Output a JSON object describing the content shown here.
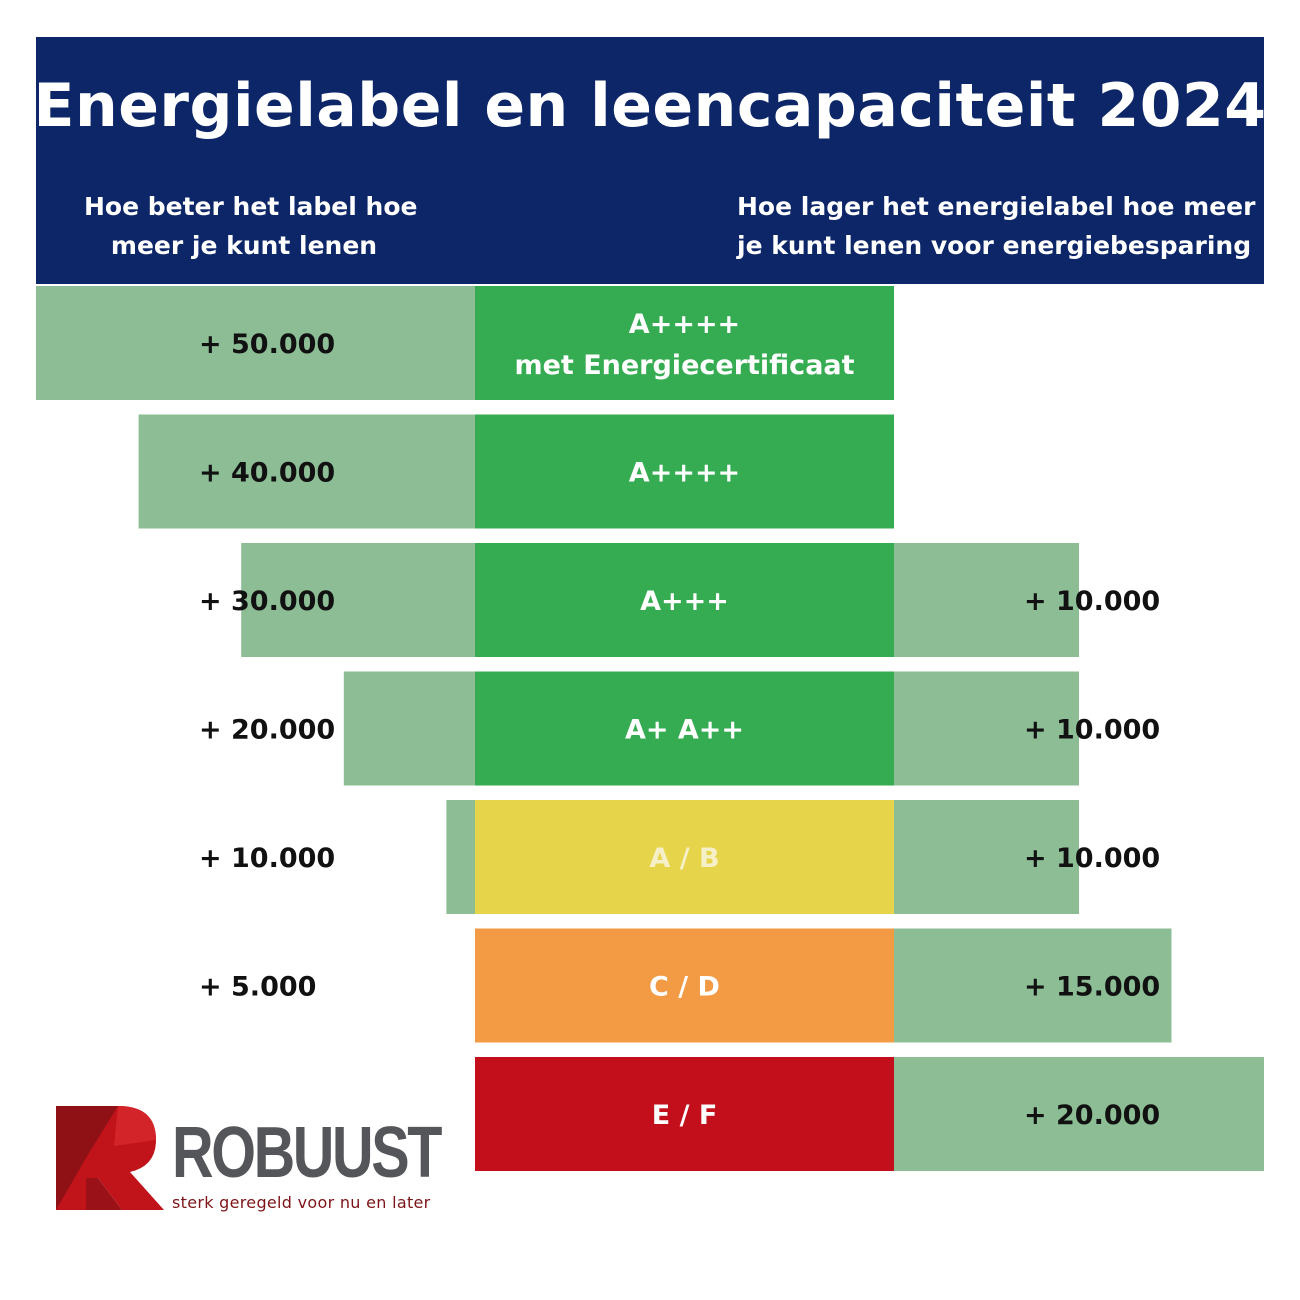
{
  "header": {
    "title": "Energielabel en leencapaciteit 2024",
    "subtitle_left": [
      "Hoe beter het label hoe",
      "meer je kunt lenen"
    ],
    "subtitle_right": [
      "Hoe lager het energielabel hoe meer",
      "je kunt lenen voor energiebesparing"
    ]
  },
  "colors": {
    "header_bg": "#0c2668",
    "side_bar": "#8cbd95",
    "label_green": "#36ac52",
    "label_yellow": "#e6d44a",
    "label_orange": "#f39a45",
    "label_red": "#c20f1b",
    "logo_red": "#c0141a",
    "logo_dark_red": "#7d1418"
  },
  "chart_data": {
    "type": "bar",
    "orientation": "horizontal-diverging",
    "categories": [
      "A++++ met Energiecertificaat",
      "A++++",
      "A+++",
      "A+ A++",
      "A / B",
      "C / D",
      "E / F"
    ],
    "category_lines": [
      [
        "A++++",
        "met Energiecertificaat"
      ],
      [
        "A++++"
      ],
      [
        "A+++"
      ],
      [
        "A+ A++"
      ],
      [
        "A / B"
      ],
      [
        "C / D"
      ],
      [
        "E / F"
      ]
    ],
    "category_colors": [
      "label_green",
      "label_green",
      "label_green",
      "label_green",
      "label_yellow",
      "label_orange",
      "label_red"
    ],
    "series": [
      {
        "values": [
          50000,
          40000,
          30000,
          20000,
          10000,
          5000,
          0
        ],
        "labels": [
          "+ 50.000",
          "+ 40.000",
          "+ 30.000",
          "+ 20.000",
          "+ 10.000",
          "+ 5.000",
          ""
        ]
      },
      {
        "values": [
          0,
          0,
          10000,
          10000,
          10000,
          15000,
          20000
        ],
        "labels": [
          "",
          "",
          "+ 10.000",
          "+ 10.000",
          "+ 10.000",
          "+ 15.000",
          "+ 20.000"
        ]
      }
    ],
    "xlim_left": [
      0,
      50000
    ],
    "xlim_right": [
      0,
      20000
    ],
    "grid": false,
    "legend": "none"
  },
  "logo": {
    "letter": "R",
    "word": "ROBUUST",
    "tagline": "sterk geregeld voor nu en later"
  }
}
